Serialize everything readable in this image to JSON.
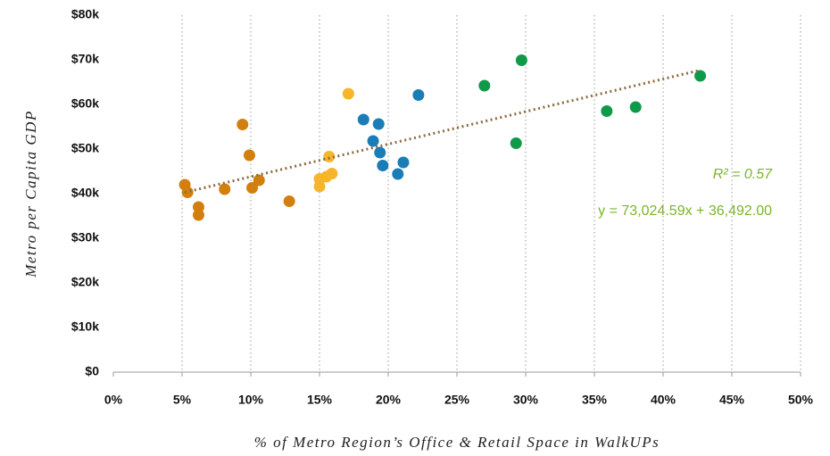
{
  "chart_data": {
    "type": "scatter",
    "x_label": "% of Metro Region’s Office & Retail Space in WalkUPs",
    "y_label": "Metro per Capita GDP",
    "xlim": [
      0,
      50
    ],
    "ylim": [
      0,
      80000
    ],
    "xticks": [
      {
        "value": 0,
        "label": "0%"
      },
      {
        "value": 5,
        "label": "5%"
      },
      {
        "value": 10,
        "label": "10%"
      },
      {
        "value": 15,
        "label": "15%"
      },
      {
        "value": 20,
        "label": "20%"
      },
      {
        "value": 25,
        "label": "25%"
      },
      {
        "value": 30,
        "label": "30%"
      },
      {
        "value": 35,
        "label": "35%"
      },
      {
        "value": 40,
        "label": "40%"
      },
      {
        "value": 45,
        "label": "45%"
      },
      {
        "value": 50,
        "label": "50%"
      }
    ],
    "yticks": [
      {
        "value": 0,
        "label": "$0"
      },
      {
        "value": 10000,
        "label": "$10k"
      },
      {
        "value": 20000,
        "label": "$20k"
      },
      {
        "value": 30000,
        "label": "$30k"
      },
      {
        "value": 40000,
        "label": "$40k"
      },
      {
        "value": 50000,
        "label": "$50k"
      },
      {
        "value": 60000,
        "label": "$60k"
      },
      {
        "value": 70000,
        "label": "$70k"
      },
      {
        "value": 80000,
        "label": "$80k"
      }
    ],
    "grid": true,
    "series": [
      {
        "color": "#d27f0f",
        "x": [
          5.2,
          5.4,
          6.2,
          6.2,
          9.4,
          8.1,
          9.9,
          10.1,
          10.6,
          12.8
        ],
        "values": [
          42000,
          40300,
          37000,
          35200,
          55500,
          41000,
          48600,
          41300,
          43000,
          38300
        ]
      },
      {
        "color": "#f7b52a",
        "x": [
          17.1,
          15.7,
          15.9,
          15.5,
          15.0,
          15.0
        ],
        "values": [
          62400,
          48300,
          44500,
          43800,
          43300,
          41600
        ]
      },
      {
        "color": "#1a7db5",
        "x": [
          22.2,
          18.2,
          19.3,
          18.9,
          19.4,
          19.6,
          21.1,
          20.7
        ],
        "values": [
          62100,
          56600,
          55600,
          51800,
          49200,
          46300,
          47000,
          44400
        ]
      },
      {
        "color": "#0f9a4a",
        "x": [
          29.7,
          27.0,
          29.3,
          35.9,
          38.0,
          42.7
        ],
        "values": [
          69900,
          64200,
          51300,
          58500,
          59400,
          66400
        ]
      }
    ],
    "trendline": {
      "color": "#8b6a3e",
      "x": [
        5.2,
        42.7
      ],
      "values": [
        40289,
        67673
      ]
    },
    "annotations": [
      "R² = 0.57",
      "y = 73,024.59x + 36,492.00"
    ]
  }
}
